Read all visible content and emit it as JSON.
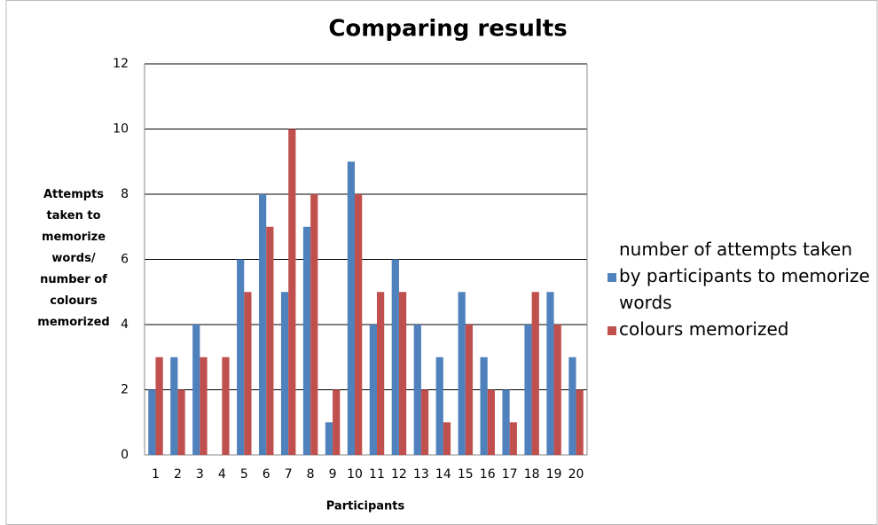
{
  "chart_data": {
    "type": "bar",
    "title": "Comparing results",
    "x_label": "Participants",
    "y_label": "Attempts taken to memorize words/ number of colours memorized",
    "categories": [
      "1",
      "2",
      "3",
      "4",
      "5",
      "6",
      "7",
      "8",
      "9",
      "10",
      "11",
      "12",
      "13",
      "14",
      "15",
      "16",
      "17",
      "18",
      "19",
      "20"
    ],
    "series": [
      {
        "name": "number of attempts taken by participants to memorize words",
        "color": "#4f81bd",
        "values": [
          2,
          3,
          4,
          0,
          6,
          8,
          5,
          7,
          1,
          9,
          4,
          6,
          4,
          3,
          5,
          3,
          2,
          4,
          5,
          3
        ]
      },
      {
        "name": "colours memorized",
        "color": "#c0504d",
        "values": [
          3,
          2,
          3,
          3,
          5,
          7,
          10,
          8,
          2,
          8,
          5,
          5,
          2,
          1,
          4,
          2,
          1,
          5,
          4,
          2
        ]
      }
    ],
    "ylim": [
      0,
      12
    ],
    "yticks": [
      0,
      2,
      4,
      6,
      8,
      10,
      12
    ],
    "grid": true,
    "legend": "right"
  }
}
